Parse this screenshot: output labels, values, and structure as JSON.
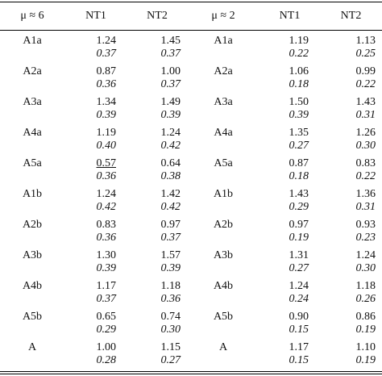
{
  "header": {
    "mu1": "μ ≈ 6",
    "nt1_a": "NT1",
    "nt2_a": "NT2",
    "mu2": "μ ≈ 2",
    "nt1_b": "NT1",
    "nt2_b": "NT2"
  },
  "rows": [
    {
      "label1": "A1a",
      "v1": "1.24",
      "v2": "1.45",
      "s1": "0.37",
      "s2": "0.37",
      "label2": "A1a",
      "v3": "1.19",
      "v4": "1.13",
      "s3": "0.22",
      "s4": "0.25"
    },
    {
      "label1": "A2a",
      "v1": "0.87",
      "v2": "1.00",
      "s1": "0.36",
      "s2": "0.37",
      "label2": "A2a",
      "v3": "1.06",
      "v4": "0.99",
      "s3": "0.18",
      "s4": "0.22"
    },
    {
      "label1": "A3a",
      "v1": "1.34",
      "v2": "1.49",
      "s1": "0.39",
      "s2": "0.39",
      "label2": "A3a",
      "v3": "1.50",
      "v4": "1.43",
      "s3": "0.39",
      "s4": "0.31"
    },
    {
      "label1": "A4a",
      "v1": "1.19",
      "v2": "1.24",
      "s1": "0.40",
      "s2": "0.42",
      "label2": "A4a",
      "v3": "1.35",
      "v4": "1.26",
      "s3": "0.27",
      "s4": "0.30"
    },
    {
      "label1": "A5a",
      "v1": "0.57",
      "v2": "0.64",
      "s1": "0.36",
      "s2": "0.38",
      "label2": "A5a",
      "v3": "0.87",
      "v4": "0.83",
      "s3": "0.18",
      "s4": "0.22"
    },
    {
      "label1": "A1b",
      "v1": "1.24",
      "v2": "1.42",
      "s1": "0.42",
      "s2": "0.42",
      "label2": "A1b",
      "v3": "1.43",
      "v4": "1.36",
      "s3": "0.29",
      "s4": "0.31"
    },
    {
      "label1": "A2b",
      "v1": "0.83",
      "v2": "0.97",
      "s1": "0.36",
      "s2": "0.37",
      "label2": "A2b",
      "v3": "0.97",
      "v4": "0.93",
      "s3": "0.19",
      "s4": "0.23"
    },
    {
      "label1": "A3b",
      "v1": "1.30",
      "v2": "1.57",
      "s1": "0.39",
      "s2": "0.39",
      "label2": "A3b",
      "v3": "1.31",
      "v4": "1.24",
      "s3": "0.27",
      "s4": "0.30"
    },
    {
      "label1": "A4b",
      "v1": "1.17",
      "v2": "1.18",
      "s1": "0.37",
      "s2": "0.36",
      "label2": "A4b",
      "v3": "1.24",
      "v4": "1.18",
      "s3": "0.24",
      "s4": "0.26"
    },
    {
      "label1": "A5b",
      "v1": "0.65",
      "v2": "0.74",
      "s1": "0.29",
      "s2": "0.30",
      "label2": "A5b",
      "v3": "0.90",
      "v4": "0.86",
      "s3": "0.15",
      "s4": "0.19"
    },
    {
      "label1": "A",
      "v1": "1.00",
      "v2": "1.15",
      "s1": "0.28",
      "s2": "0.27",
      "label2": "A",
      "v3": "1.17",
      "v4": "1.10",
      "s3": "0.15",
      "s4": "0.19"
    }
  ],
  "underlined_cell": {
    "row": 4,
    "col": "v1"
  }
}
